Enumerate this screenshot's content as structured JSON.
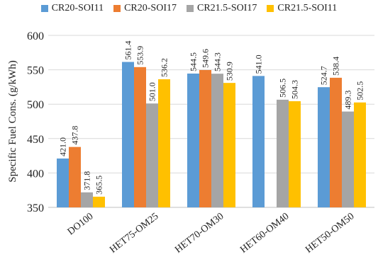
{
  "chart_data": {
    "type": "bar",
    "title": "",
    "xlabel": "",
    "ylabel": "Specific Fuel Cons. (g/kWh)",
    "ylim": [
      350,
      600
    ],
    "yticks": [
      "350",
      "400",
      "450",
      "500",
      "550",
      "600"
    ],
    "grid": "horizontal",
    "legend_position": "top",
    "categories": [
      "DO100",
      "HET75-OM25",
      "HET70-OM30",
      "HET60-OM40",
      "HET50-OM50"
    ],
    "series": [
      {
        "name": "CR20-SOI11",
        "color": "#5B9BD5",
        "values": [
          421.0,
          561.4,
          544.5,
          541.0,
          524.7
        ],
        "labels": [
          "421.0",
          "561.4",
          "544.5",
          "541.0",
          "524.7"
        ]
      },
      {
        "name": "CR20-SOI17",
        "color": "#ED7D31",
        "values": [
          437.8,
          553.9,
          549.6,
          null,
          538.4
        ],
        "labels": [
          "437.8",
          "553.9",
          "549.6",
          "",
          "538.4"
        ]
      },
      {
        "name": "CR21.5-SOI17",
        "color": "#A5A5A5",
        "values": [
          371.8,
          501.0,
          544.3,
          506.5,
          489.3
        ],
        "labels": [
          "371.8",
          "501.0",
          "544.3",
          "506.5",
          "489.3"
        ]
      },
      {
        "name": "CR21.5-SOI11",
        "color": "#FFC000",
        "values": [
          365.5,
          536.2,
          530.9,
          504.3,
          502.5
        ],
        "labels": [
          "365.5",
          "536.2",
          "530.9",
          "504.3",
          "502.5"
        ]
      }
    ]
  }
}
